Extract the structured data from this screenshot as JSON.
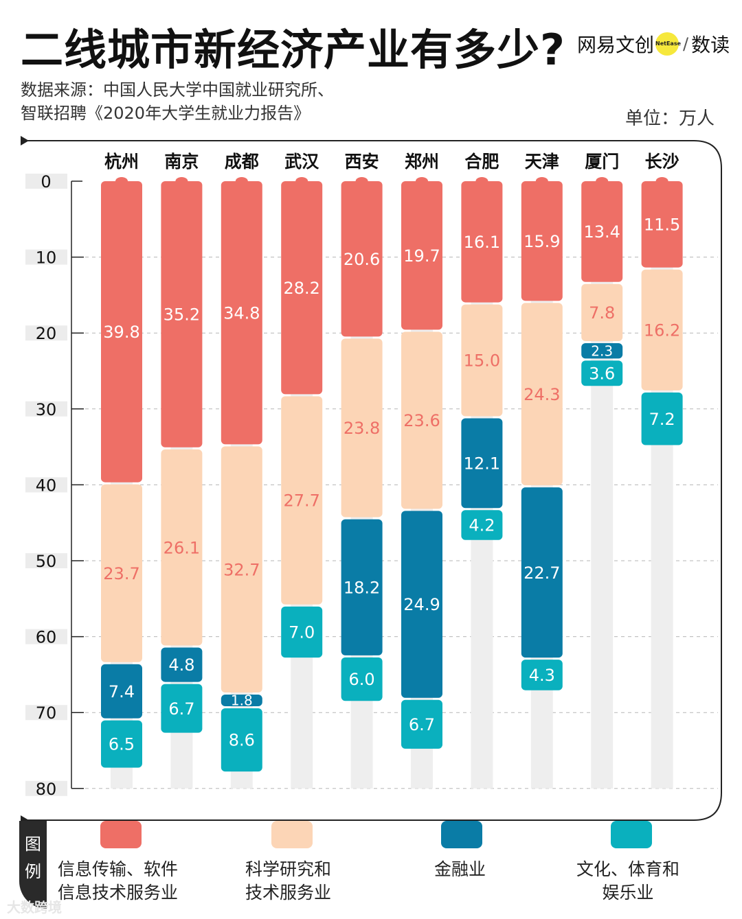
{
  "header": {
    "title": "二线城市新经济产业有多少?",
    "source_line1": "数据来源：中国人民大学中国就业研究所、",
    "source_line2": "智联招聘《2020年大学生就业力报告》",
    "unit": "单位：万人",
    "brand_left": "网易文创",
    "brand_dot": "NetEase",
    "brand_sep": "/",
    "brand_right": "数读"
  },
  "legend": {
    "tag": [
      "图",
      "例"
    ],
    "items": [
      {
        "label_l1": "信息传输、软件",
        "label_l2": "信息技术服务业",
        "color": "#ee6f66"
      },
      {
        "label_l1": "科学研究和",
        "label_l2": "技术服务业",
        "color": "#fcd5b6"
      },
      {
        "label_l1": "金融业",
        "label_l2": "",
        "color": "#0a7ca6"
      },
      {
        "label_l1": "文化、体育和",
        "label_l2": "娱乐业",
        "color": "#0ab0be"
      }
    ]
  },
  "watermark": "大数跨境",
  "chart_data": {
    "type": "bar",
    "stacked": true,
    "orientation": "vertical-downward",
    "categories": [
      "杭州",
      "南京",
      "成都",
      "武汉",
      "西安",
      "郑州",
      "合肥",
      "天津",
      "厦门",
      "长沙"
    ],
    "series": [
      {
        "name": "信息传输、软件信息技术服务业",
        "color": "#ee6f66",
        "label_color": "#ffffff",
        "values": [
          39.8,
          35.2,
          34.8,
          28.2,
          20.6,
          19.7,
          16.1,
          15.9,
          13.4,
          11.5
        ]
      },
      {
        "name": "科学研究和技术服务业",
        "color": "#fcd5b6",
        "label_color": "#ee6f66",
        "values": [
          23.7,
          26.1,
          32.7,
          27.7,
          23.8,
          23.6,
          15.0,
          24.3,
          7.8,
          16.2
        ]
      },
      {
        "name": "金融业",
        "color": "#0a7ca6",
        "label_color": "#ffffff",
        "values": [
          7.4,
          4.8,
          1.8,
          null,
          18.2,
          24.9,
          12.1,
          22.7,
          2.3,
          null
        ]
      },
      {
        "name": "文化、体育和娱乐业",
        "color": "#0ab0be",
        "label_color": "#ffffff",
        "values": [
          6.5,
          6.7,
          8.6,
          7.0,
          6.0,
          6.7,
          4.2,
          4.3,
          3.6,
          7.2
        ]
      }
    ],
    "yticks": [
      0,
      10,
      20,
      30,
      40,
      50,
      60,
      70,
      80
    ],
    "ylim": [
      0,
      80
    ],
    "grid": true
  }
}
